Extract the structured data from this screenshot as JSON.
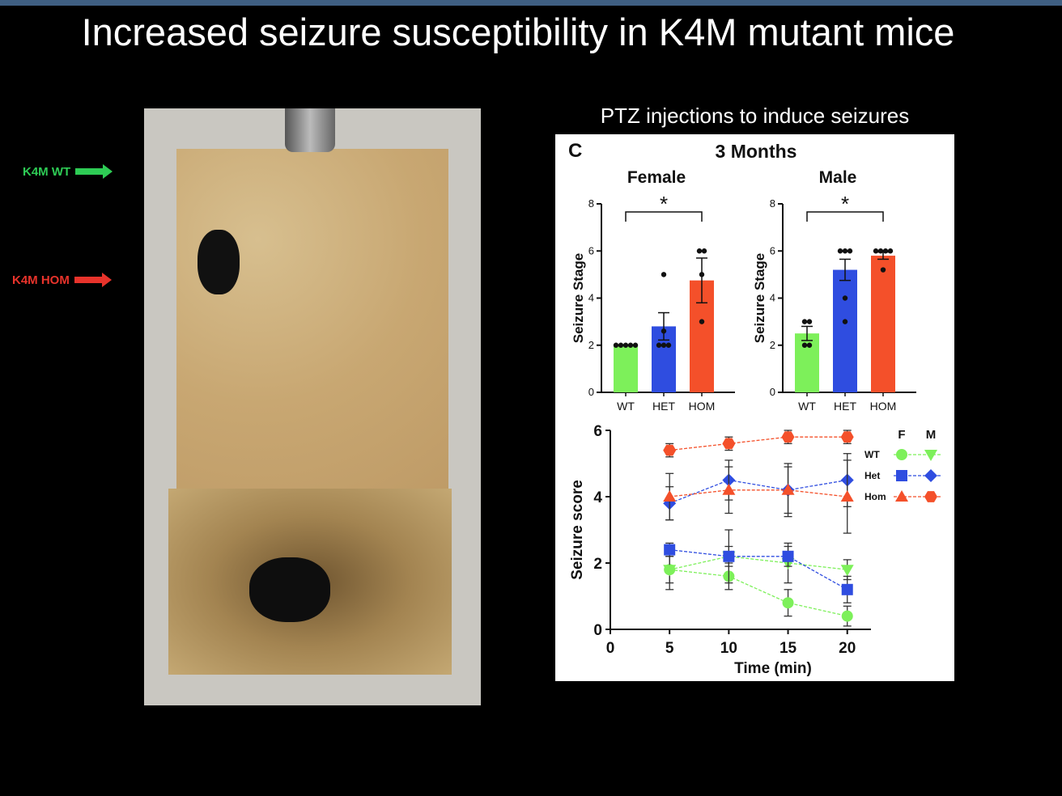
{
  "slide": {
    "title": "Increased seizure susceptibility in K4M mutant mice",
    "ptz_label": "PTZ injections to induce seizures",
    "arrows": [
      {
        "label": "K4M WT",
        "color": "#2ecc55"
      },
      {
        "label": "K4M HOM",
        "color": "#e8332b"
      }
    ]
  },
  "figure": {
    "panel_letter": "C",
    "heading": "3 Months"
  },
  "colors": {
    "wt": "#7df05a",
    "het": "#2f4de0",
    "hom": "#f4502a"
  },
  "chart_data": [
    {
      "type": "bar",
      "title": "Female",
      "ylabel": "Seizure Stage",
      "ylim": [
        0,
        8
      ],
      "yticks": [
        "0",
        "2",
        "4",
        "6",
        "8"
      ],
      "categories": [
        "WT",
        "HET",
        "HOM"
      ],
      "values": [
        2.0,
        2.8,
        4.75
      ],
      "sem": [
        0,
        0.58,
        0.95
      ],
      "points": [
        [
          2,
          2,
          2,
          2,
          2
        ],
        [
          5,
          2.6,
          2,
          2,
          2
        ],
        [
          6,
          6,
          5,
          3
        ]
      ],
      "significance": {
        "from": "WT",
        "to": "HOM",
        "label": "*"
      }
    },
    {
      "type": "bar",
      "title": "Male",
      "ylabel": "Seizure Stage",
      "ylim": [
        0,
        8
      ],
      "yticks": [
        "0",
        "2",
        "4",
        "6",
        "8"
      ],
      "categories": [
        "WT",
        "HET",
        "HOM"
      ],
      "values": [
        2.5,
        5.2,
        5.8
      ],
      "sem": [
        0.3,
        0.45,
        0.15
      ],
      "points": [
        [
          3,
          3,
          2,
          2
        ],
        [
          6,
          6,
          6,
          4,
          3
        ],
        [
          6,
          6,
          6,
          6,
          5.2
        ]
      ],
      "significance": {
        "from": "WT",
        "to": "HOM",
        "label": "*"
      }
    },
    {
      "type": "line",
      "xlabel": "Time (min)",
      "ylabel": "Seizure score",
      "xlim": [
        0,
        22
      ],
      "ylim": [
        0,
        6
      ],
      "xticks": [
        "0",
        "5",
        "10",
        "15",
        "20"
      ],
      "yticks": [
        "0",
        "2",
        "4",
        "6"
      ],
      "x": [
        5,
        10,
        15,
        20
      ],
      "legend": {
        "col_f": "F",
        "col_m": "M",
        "rows": [
          "WT",
          "Het",
          "Hom"
        ]
      },
      "series": [
        {
          "group": "WT",
          "sex": "F",
          "marker": "circle",
          "values": [
            1.8,
            1.6,
            0.8,
            0.4
          ],
          "err": [
            0.6,
            0.4,
            0.4,
            0.3
          ]
        },
        {
          "group": "WT",
          "sex": "M",
          "marker": "triangle-down",
          "values": [
            1.8,
            2.2,
            2.0,
            1.8
          ],
          "err": [
            0.4,
            0.8,
            0.6,
            0.3
          ]
        },
        {
          "group": "Het",
          "sex": "F",
          "marker": "square",
          "values": [
            2.4,
            2.2,
            2.2,
            1.2
          ],
          "err": [
            0.2,
            0.3,
            0.3,
            0.4
          ]
        },
        {
          "group": "Het",
          "sex": "M",
          "marker": "diamond",
          "values": [
            3.8,
            4.5,
            4.2,
            4.5
          ],
          "err": [
            0.5,
            0.6,
            0.8,
            0.8
          ]
        },
        {
          "group": "Hom",
          "sex": "F",
          "marker": "triangle-up",
          "values": [
            4.0,
            4.2,
            4.2,
            4.0
          ],
          "err": [
            0.7,
            0.7,
            0.7,
            1.1
          ]
        },
        {
          "group": "Hom",
          "sex": "M",
          "marker": "hexagon",
          "values": [
            5.4,
            5.6,
            5.8,
            5.8
          ],
          "err": [
            0.2,
            0.2,
            0.2,
            0.2
          ]
        }
      ]
    }
  ]
}
